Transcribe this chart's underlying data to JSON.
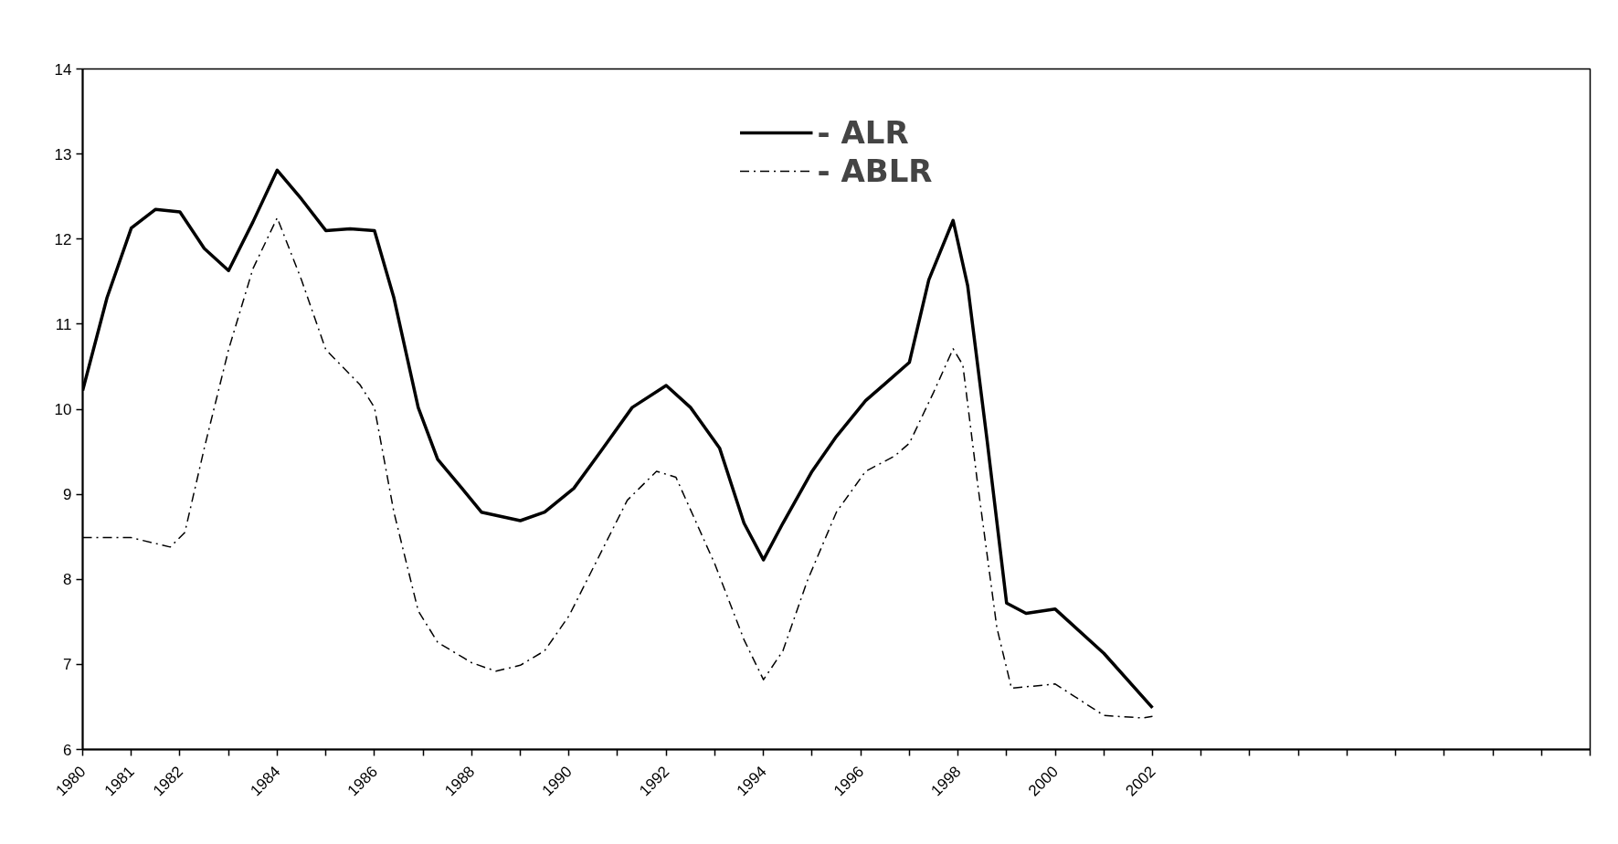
{
  "chart_data": {
    "type": "line",
    "xlim": [
      1980,
      2011
    ],
    "ylim": [
      6,
      14
    ],
    "yticks": [
      6,
      7,
      8,
      9,
      10,
      11,
      12,
      13,
      14
    ],
    "xticks": [
      1980,
      1981,
      1982,
      {
        "value": 1983,
        "label": null
      },
      1984,
      {
        "value": 1985,
        "label": null
      },
      1986,
      {
        "value": 1987,
        "label": null
      },
      1988,
      {
        "value": 1989,
        "label": null
      },
      1990,
      {
        "value": 1991,
        "label": null
      },
      1992,
      {
        "value": 1993,
        "label": null
      },
      1994,
      {
        "value": 1995,
        "label": null
      },
      1996,
      {
        "value": 1997,
        "label": null
      },
      1998,
      {
        "value": 1999,
        "label": null
      },
      2000,
      {
        "value": 2001,
        "label": null
      },
      2002,
      {
        "value": 2003,
        "label": null
      },
      {
        "value": 2004,
        "label": null
      },
      {
        "value": 2005,
        "label": null
      },
      {
        "value": 2006,
        "label": null
      },
      {
        "value": 2007,
        "label": null
      },
      {
        "value": 2008,
        "label": null
      },
      {
        "value": 2009,
        "label": null
      },
      {
        "value": 2010,
        "label": null
      },
      {
        "value": 2011,
        "label": null
      }
    ],
    "grid": false,
    "legend": "top",
    "marker": "none",
    "series": [
      {
        "name": "- ALR",
        "color": "#000000",
        "line_style": "solid",
        "x": [
          1980.0,
          1980.5,
          1981.0,
          1981.5,
          1982.0,
          1982.5,
          1983.0,
          1983.5,
          1984.0,
          1984.5,
          1985.0,
          1985.5,
          1986.0,
          1986.4,
          1986.9,
          1987.3,
          1987.8,
          1988.2,
          1989.0,
          1989.5,
          1990.1,
          1990.7,
          1991.3,
          1992.0,
          1992.5,
          1993.1,
          1993.6,
          1994.0,
          1994.4,
          1995.0,
          1995.5,
          1996.1,
          1996.5,
          1997.0,
          1997.4,
          1997.9,
          1998.2,
          1998.6,
          1999.0,
          1999.4,
          2000.0,
          2001.0,
          2002.0
        ],
        "values": [
          10.22,
          11.31,
          12.13,
          12.35,
          12.32,
          11.89,
          11.63,
          12.2,
          12.81,
          12.47,
          12.1,
          12.12,
          12.1,
          11.31,
          10.02,
          9.41,
          9.07,
          8.79,
          8.69,
          8.79,
          9.07,
          9.54,
          10.02,
          10.28,
          10.02,
          9.54,
          8.66,
          8.23,
          8.66,
          9.27,
          9.68,
          10.1,
          10.3,
          10.55,
          11.52,
          12.22,
          11.45,
          9.63,
          7.72,
          7.6,
          7.65,
          7.13,
          6.49
        ]
      },
      {
        "name": "- ABLR",
        "color": "#000000",
        "line_style": "dashed",
        "x": [
          1980.0,
          1981.0,
          1981.8,
          1982.1,
          1982.5,
          1983.0,
          1983.5,
          1984.0,
          1984.5,
          1985.0,
          1985.7,
          1986.0,
          1986.4,
          1986.9,
          1987.3,
          1988.0,
          1988.5,
          1989.0,
          1989.5,
          1990.0,
          1990.6,
          1991.2,
          1991.8,
          1992.2,
          1993.0,
          1993.6,
          1994.0,
          1994.4,
          1994.9,
          1995.5,
          1996.1,
          1996.7,
          1997.0,
          1997.5,
          1997.9,
          1998.1,
          1998.4,
          1998.8,
          1999.1,
          2000.0,
          2001.0,
          2001.8,
          2002.0
        ],
        "values": [
          8.49,
          8.49,
          8.38,
          8.55,
          9.54,
          10.7,
          11.65,
          12.25,
          11.52,
          10.7,
          10.29,
          10.02,
          8.79,
          7.63,
          7.26,
          7.02,
          6.92,
          6.99,
          7.16,
          7.57,
          8.25,
          8.93,
          9.27,
          9.2,
          8.18,
          7.29,
          6.82,
          7.16,
          7.98,
          8.79,
          9.27,
          9.45,
          9.6,
          10.2,
          10.71,
          10.52,
          9.14,
          7.43,
          6.72,
          6.77,
          6.4,
          6.37,
          6.39
        ]
      }
    ]
  }
}
